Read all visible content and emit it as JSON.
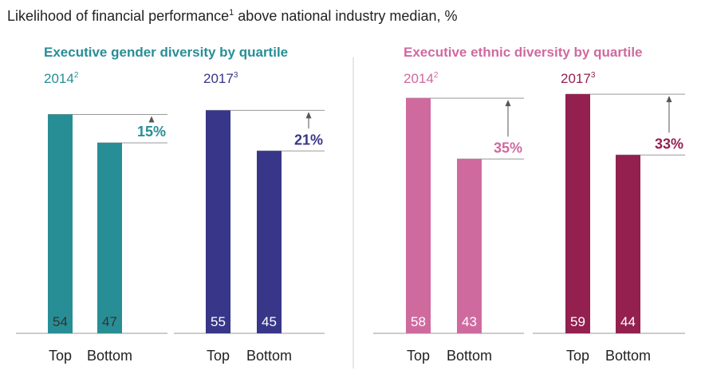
{
  "page_title": "Likelihood of financial performance",
  "title_sup": "1",
  "title_rest": " above national industry median, %",
  "chart_data": [
    {
      "type": "bar",
      "group": "Executive gender diversity by quartile",
      "year": "2014",
      "year_sup": "2",
      "categories": [
        "Top",
        "Bottom"
      ],
      "values": [
        54,
        47
      ],
      "diff_label": "15%",
      "color": "#288e96",
      "ylim": [
        0,
        60
      ]
    },
    {
      "type": "bar",
      "group": "Executive gender diversity by quartile",
      "year": "2017",
      "year_sup": "3",
      "categories": [
        "Top",
        "Bottom"
      ],
      "values": [
        55,
        45
      ],
      "diff_label": "21%",
      "color": "#373688",
      "ylim": [
        0,
        60
      ]
    },
    {
      "type": "bar",
      "group": "Executive ethnic diversity by quartile",
      "year": "2014",
      "year_sup": "2",
      "categories": [
        "Top",
        "Bottom"
      ],
      "values": [
        58,
        43
      ],
      "diff_label": "35%",
      "color": "#cf6a9f",
      "ylim": [
        0,
        60
      ]
    },
    {
      "type": "bar",
      "group": "Executive ethnic diversity by quartile",
      "year": "2017",
      "year_sup": "3",
      "categories": [
        "Top",
        "Bottom"
      ],
      "values": [
        59,
        44
      ],
      "diff_label": "33%",
      "color": "#93204f",
      "ylim": [
        0,
        60
      ]
    }
  ],
  "groups": [
    {
      "title": "Executive gender diversity by quartile",
      "color": "#288e96"
    },
    {
      "title": "Executive ethnic diversity by quartile",
      "color": "#cf6a9f"
    }
  ],
  "colors": {
    "text": "#222222",
    "axis": "#999999",
    "divider": "#cccccc",
    "arrow": "#555555",
    "dark_value": "#333333",
    "light_value": "#ffffff"
  }
}
